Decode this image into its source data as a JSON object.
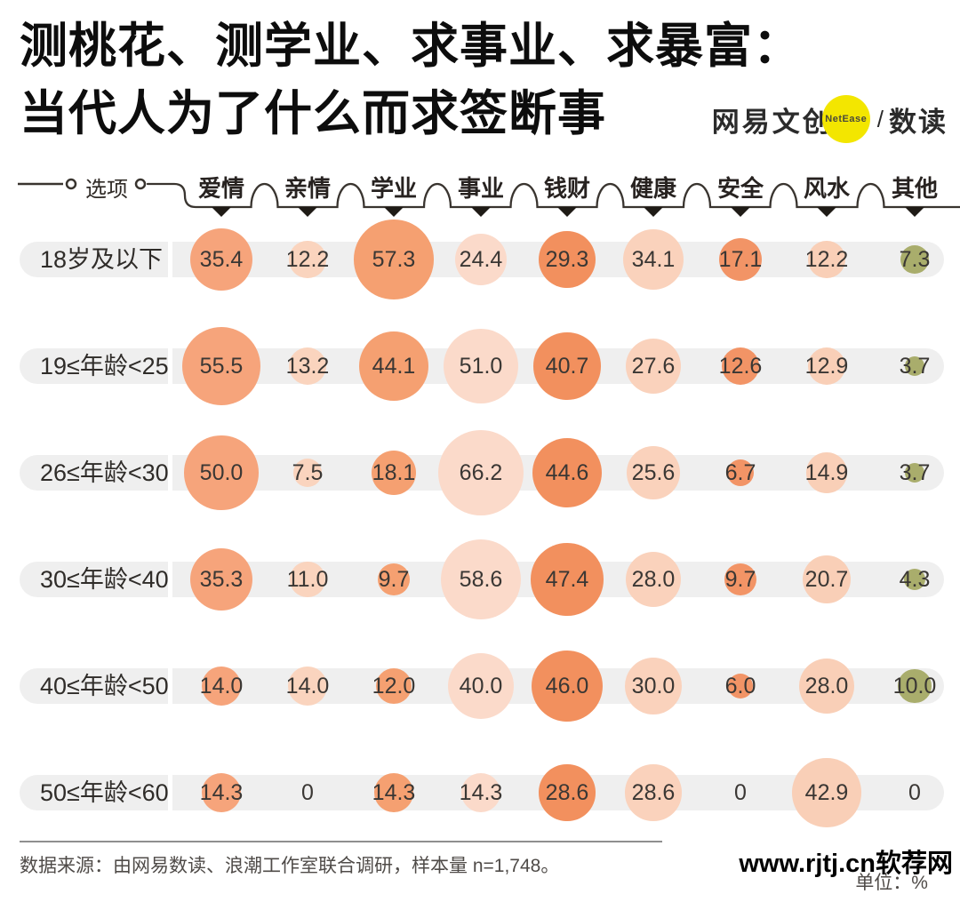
{
  "title": {
    "line1": "测桃花、测学业、求事业、求暴富：",
    "line2": "当代人为了什么而求签断事"
  },
  "logo": {
    "brand": "网易文创",
    "badge": "NetEase",
    "slash": "/",
    "sub": "数读",
    "badge_color": "#f3e600"
  },
  "header": {
    "axis_label": "选项"
  },
  "chart_data": {
    "type": "bubble-matrix",
    "unit": "%",
    "categories": [
      "爱情",
      "亲情",
      "学业",
      "事业",
      "钱财",
      "健康",
      "安全",
      "风水",
      "其他"
    ],
    "category_colors": [
      "#F6A47B",
      "#FAD4BE",
      "#F5A071",
      "#FBDACA",
      "#F2905E",
      "#FAD2BC",
      "#F29466",
      "#F9CFB7",
      "#A9AD6C"
    ],
    "rows": [
      {
        "label": "18岁及以下",
        "values": [
          "35.4",
          "12.2",
          "57.3",
          "24.4",
          "29.3",
          "34.1",
          "17.1",
          "12.2",
          "7.3"
        ]
      },
      {
        "label": "19≤年龄<25",
        "values": [
          "55.5",
          "13.2",
          "44.1",
          "51.0",
          "40.7",
          "27.6",
          "12.6",
          "12.9",
          "3.7"
        ]
      },
      {
        "label": "26≤年龄<30",
        "values": [
          "50.0",
          "7.5",
          "18.1",
          "66.2",
          "44.6",
          "25.6",
          "6.7",
          "14.9",
          "3.7"
        ]
      },
      {
        "label": "30≤年龄<40",
        "values": [
          "35.3",
          "11.0",
          "9.7",
          "58.6",
          "47.4",
          "28.0",
          "9.7",
          "20.7",
          "4.3"
        ]
      },
      {
        "label": "40≤年龄<50",
        "values": [
          "14.0",
          "14.0",
          "12.0",
          "40.0",
          "46.0",
          "30.0",
          "6.0",
          "28.0",
          "10.0"
        ]
      },
      {
        "label": "50≤年龄<60",
        "values": [
          "14.3",
          "0",
          "14.3",
          "14.3",
          "28.6",
          "28.6",
          "0",
          "42.9",
          "0"
        ]
      }
    ]
  },
  "footer": {
    "source": "数据来源：由网易数读、浪潮工作室联合调研，样本量 n=1,748。",
    "unit": "单位：%",
    "watermark": "www.rjtj.cn软荐网"
  }
}
